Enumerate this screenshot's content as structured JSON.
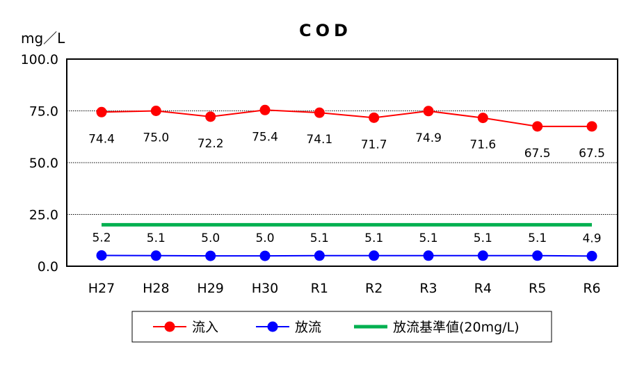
{
  "chart_data": {
    "type": "line",
    "title": "COD",
    "ylabel": "mg／L",
    "xlabel": "",
    "ylim": [
      0,
      100
    ],
    "y_ticks": [
      "0.0",
      "25.0",
      "50.0",
      "75.0",
      "100.0"
    ],
    "categories": [
      "H27",
      "H28",
      "H29",
      "H30",
      "R1",
      "R2",
      "R3",
      "R4",
      "R5",
      "R6"
    ],
    "series": [
      {
        "name": "流入",
        "color": "#ff0000",
        "values": [
          74.4,
          75.0,
          72.2,
          75.4,
          74.1,
          71.7,
          74.9,
          71.6,
          67.5,
          67.5
        ],
        "labels": [
          "74.4",
          "75.0",
          "72.2",
          "75.4",
          "74.1",
          "71.7",
          "74.9",
          "71.6",
          "67.5",
          "67.5"
        ]
      },
      {
        "name": "放流",
        "color": "#0000ff",
        "values": [
          5.2,
          5.1,
          5.0,
          5.0,
          5.1,
          5.1,
          5.1,
          5.1,
          5.1,
          4.9
        ],
        "labels": [
          "5.2",
          "5.1",
          "5.0",
          "5.0",
          "5.1",
          "5.1",
          "5.1",
          "5.1",
          "5.1",
          "4.9"
        ]
      },
      {
        "name": "放流基準値(20mg/L)",
        "color": "#00b050",
        "values": [
          20,
          20,
          20,
          20,
          20,
          20,
          20,
          20,
          20,
          20
        ]
      }
    ],
    "grid": true,
    "legend_position": "bottom"
  }
}
